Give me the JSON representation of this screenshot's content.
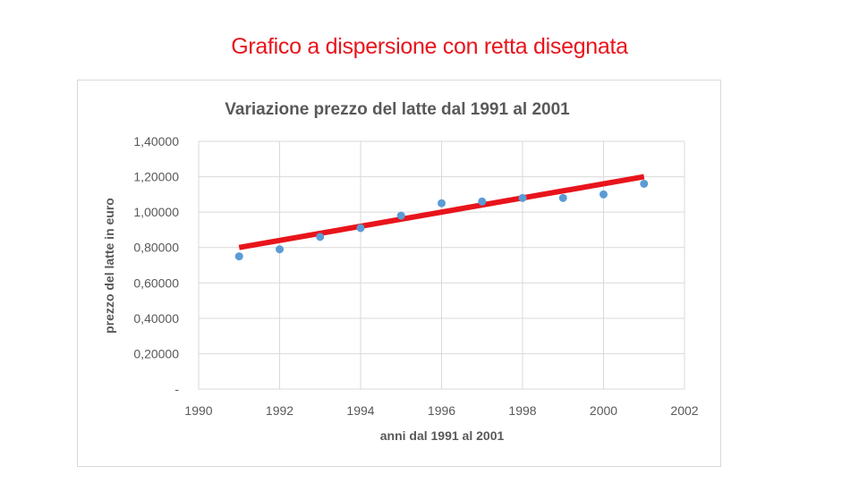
{
  "slide": {
    "title": "Grafico a dispersione con retta disegnata",
    "title_color": "#e8141c"
  },
  "chart_data": {
    "type": "scatter",
    "title": "Variazione prezzo del latte dal 1991 al 2001",
    "xlabel": "anni dal 1991 al 2001",
    "ylabel": "prezzo del latte in euro",
    "xlim": [
      1990,
      2002
    ],
    "ylim": [
      0,
      1.4
    ],
    "x_ticks": [
      1990,
      1992,
      1994,
      1996,
      1998,
      2000,
      2002
    ],
    "y_ticks": [
      0,
      0.2,
      0.4,
      0.6,
      0.8,
      1.0,
      1.2,
      1.4
    ],
    "y_tick_labels": [
      "-",
      "0,20000",
      "0,40000",
      "0,60000",
      "0,80000",
      "1,00000",
      "1,20000",
      "1,40000"
    ],
    "grid": true,
    "series": [
      {
        "x": [
          1991,
          1992,
          1993,
          1994,
          1995,
          1996,
          1997,
          1998,
          1999,
          2000,
          2001
        ],
        "y": [
          0.75,
          0.79,
          0.86,
          0.91,
          0.98,
          1.05,
          1.06,
          1.08,
          1.08,
          1.1,
          1.16
        ],
        "color": "#5b9bd5"
      }
    ],
    "drawn_line": {
      "x": [
        1991,
        2001
      ],
      "y": [
        0.8,
        1.2
      ],
      "color": "#e8141c"
    }
  }
}
